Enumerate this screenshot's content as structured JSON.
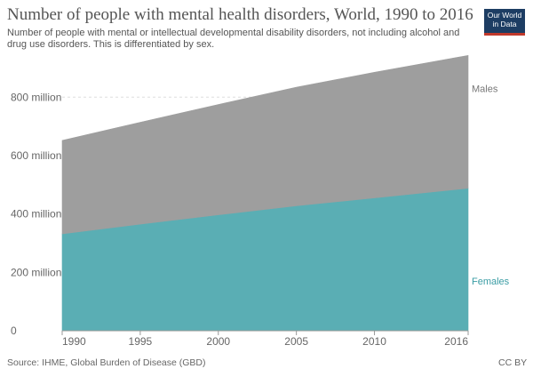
{
  "header": {
    "title": "Number of people with mental health disorders, World, 1990 to 2016",
    "subtitle": "Number of people with mental or intellectual developmental disability disorders, not including alcohol and drug use disorders. This is differentiated by sex."
  },
  "logo": {
    "line1": "Our World",
    "line2": "in Data",
    "bg_color": "#1d3d63",
    "accent_color": "#c0392b"
  },
  "footer": {
    "source": "Source: IHME, Global Burden of Disease (GBD)",
    "license": "CC BY"
  },
  "chart_data": {
    "type": "area",
    "stacked": true,
    "x": [
      1990,
      1995,
      2000,
      2005,
      2010,
      2016
    ],
    "series": [
      {
        "name": "Females",
        "color": "#5aaeb4",
        "label_color": "#3a9ca4",
        "values": [
          332,
          365,
          397,
          428,
          455,
          488
        ]
      },
      {
        "name": "Males",
        "color": "#9e9e9e",
        "label_color": "#777777",
        "values": [
          320,
          349,
          378,
          406,
          430,
          455
        ]
      }
    ],
    "xticks": [
      "1990",
      "1995",
      "2000",
      "2005",
      "2010",
      "2016"
    ],
    "yticks": [
      {
        "value": 0,
        "label": "0"
      },
      {
        "value": 200,
        "label": "200 million"
      },
      {
        "value": 400,
        "label": "400 million"
      },
      {
        "value": 600,
        "label": "600 million"
      },
      {
        "value": 800,
        "label": "800 million"
      }
    ],
    "xlim": [
      1990,
      2016
    ],
    "ylim": [
      0,
      950
    ],
    "grid": true,
    "title": "Number of people with mental health disorders, World, 1990 to 2016",
    "xlabel": "",
    "ylabel": ""
  }
}
